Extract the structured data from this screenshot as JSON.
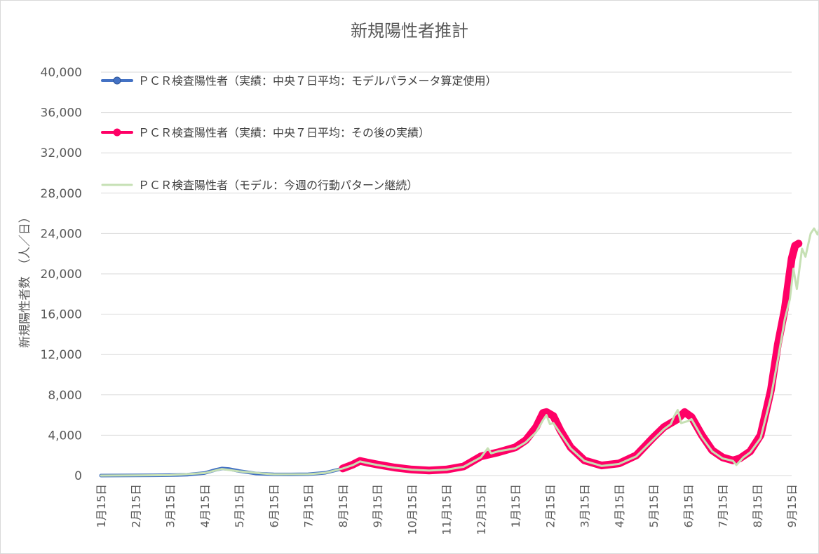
{
  "chart_data": {
    "type": "line",
    "title": "新規陽性者推計",
    "ylabel": "新規陽性者数　（人／日）",
    "xlabel": "",
    "ylim": [
      0,
      40000
    ],
    "yticks": [
      0,
      4000,
      8000,
      12000,
      16000,
      20000,
      24000,
      28000,
      32000,
      36000,
      40000
    ],
    "ytick_labels": [
      "0",
      "4,000",
      "8,000",
      "12,000",
      "16,000",
      "20,000",
      "24,000",
      "28,000",
      "32,000",
      "36,000",
      "40,000"
    ],
    "x_tick_labels": [
      "1月15日",
      "2月15日",
      "3月15日",
      "4月15日",
      "5月15日",
      "6月15日",
      "7月15日",
      "8月15日",
      "9月15日",
      "10月15日",
      "11月15日",
      "12月15日",
      "1月15日",
      "2月15日",
      "3月15日",
      "4月15日",
      "5月15日",
      "6月15日",
      "7月15日",
      "8月15日",
      "9月15日"
    ],
    "grid": true,
    "legend_position": "top-left",
    "series": [
      {
        "name": "ＰＣＲ検査陽性者（実績：中央７日平均：モデルパラメータ算定使用）",
        "color": "#4472c4",
        "marker": "circle",
        "points": [
          [
            0,
            0
          ],
          [
            0.5,
            5
          ],
          [
            1,
            20
          ],
          [
            1.5,
            30
          ],
          [
            2,
            40
          ],
          [
            2.5,
            80
          ],
          [
            3,
            250
          ],
          [
            3.3,
            550
          ],
          [
            3.5,
            700
          ],
          [
            3.7,
            650
          ],
          [
            4,
            450
          ],
          [
            4.5,
            200
          ],
          [
            5,
            120
          ],
          [
            5.5,
            110
          ],
          [
            6,
            130
          ],
          [
            6.5,
            280
          ],
          [
            7,
            700
          ]
        ]
      },
      {
        "name": "ＰＣＲ検査陽性者（実績：中央７日平均：その後の実績）",
        "color": "#ff0066",
        "marker": "circle",
        "points": [
          [
            7,
            700
          ],
          [
            7.3,
            1100
          ],
          [
            7.5,
            1450
          ],
          [
            7.7,
            1300
          ],
          [
            8,
            1100
          ],
          [
            8.5,
            800
          ],
          [
            9,
            600
          ],
          [
            9.5,
            500
          ],
          [
            10,
            600
          ],
          [
            10.5,
            900
          ],
          [
            11,
            1900
          ],
          [
            11.5,
            2300
          ],
          [
            12,
            2800
          ],
          [
            12.3,
            3500
          ],
          [
            12.6,
            4800
          ],
          [
            12.8,
            6200
          ],
          [
            12.9,
            6300
          ],
          [
            13.1,
            5900
          ],
          [
            13.3,
            4500
          ],
          [
            13.6,
            2800
          ],
          [
            14,
            1500
          ],
          [
            14.5,
            1000
          ],
          [
            15,
            1200
          ],
          [
            15.5,
            2000
          ],
          [
            16,
            3800
          ],
          [
            16.3,
            4800
          ],
          [
            16.5,
            5200
          ],
          [
            16.7,
            5600
          ],
          [
            16.9,
            6300
          ],
          [
            17.1,
            5800
          ],
          [
            17.4,
            4000
          ],
          [
            17.7,
            2500
          ],
          [
            18,
            1800
          ],
          [
            18.3,
            1500
          ],
          [
            18.5,
            1700
          ],
          [
            18.8,
            2400
          ],
          [
            19.1,
            4000
          ],
          [
            19.4,
            8500
          ],
          [
            19.6,
            13000
          ],
          [
            19.8,
            16500
          ],
          [
            19.9,
            19000
          ],
          [
            20,
            21500
          ],
          [
            20.1,
            22800
          ],
          [
            20.2,
            23000
          ]
        ]
      },
      {
        "name": "ＰＣＲ検査陽性者（モデル：今週の行動パターン継続）",
        "color": "#c6e0b4",
        "marker": "none",
        "points": [
          [
            0,
            0
          ],
          [
            1,
            20
          ],
          [
            2,
            40
          ],
          [
            3,
            250
          ],
          [
            3.5,
            650
          ],
          [
            4,
            420
          ],
          [
            5,
            120
          ],
          [
            6,
            130
          ],
          [
            6.5,
            270
          ],
          [
            7,
            700
          ],
          [
            7.3,
            1050
          ],
          [
            7.5,
            1400
          ],
          [
            7.7,
            1250
          ],
          [
            8,
            1050
          ],
          [
            8.5,
            770
          ],
          [
            9,
            580
          ],
          [
            9.5,
            490
          ],
          [
            10,
            580
          ],
          [
            10.5,
            870
          ],
          [
            11,
            1800
          ],
          [
            11.2,
            2700
          ],
          [
            11.3,
            2200
          ],
          [
            11.5,
            2400
          ],
          [
            12,
            2700
          ],
          [
            12.3,
            3300
          ],
          [
            12.6,
            4300
          ],
          [
            12.8,
            5500
          ],
          [
            12.9,
            6000
          ],
          [
            13,
            5100
          ],
          [
            13.1,
            5200
          ],
          [
            13.3,
            4200
          ],
          [
            13.6,
            2700
          ],
          [
            14,
            1450
          ],
          [
            14.5,
            950
          ],
          [
            15,
            1150
          ],
          [
            15.5,
            1900
          ],
          [
            16,
            3600
          ],
          [
            16.3,
            4600
          ],
          [
            16.5,
            5100
          ],
          [
            16.6,
            5900
          ],
          [
            16.7,
            6500
          ],
          [
            16.8,
            5200
          ],
          [
            17,
            5400
          ],
          [
            17.1,
            5600
          ],
          [
            17.4,
            3800
          ],
          [
            17.7,
            2400
          ],
          [
            18,
            1700
          ],
          [
            18.3,
            1450
          ],
          [
            18.4,
            1050
          ],
          [
            18.6,
            1800
          ],
          [
            18.8,
            2300
          ],
          [
            19.1,
            3700
          ],
          [
            19.4,
            7800
          ],
          [
            19.6,
            11500
          ],
          [
            19.8,
            15500
          ],
          [
            19.95,
            17500
          ],
          [
            20.05,
            20500
          ],
          [
            20.15,
            18500
          ],
          [
            20.3,
            22500
          ],
          [
            20.4,
            21700
          ],
          [
            20.55,
            24000
          ],
          [
            20.65,
            24500
          ],
          [
            20.75,
            23900
          ],
          [
            20.85,
            25000
          ],
          [
            20.95,
            25600
          ],
          [
            21.0,
            24800
          ],
          [
            21.1,
            25300
          ],
          [
            21.15,
            24800
          ],
          [
            21.25,
            23900
          ]
        ]
      }
    ]
  }
}
